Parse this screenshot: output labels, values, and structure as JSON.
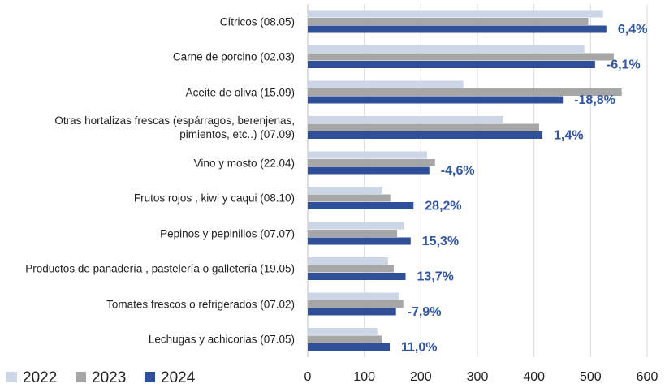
{
  "chart_data": {
    "type": "hbar",
    "categories": [
      "Cítricos (08.05)",
      "Carne de porcino (02.03)",
      "Aceite de  oliva  (15.09)",
      "Otras hortalizas frescas (espárragos, berenjenas, pimientos, etc..) (07.09)",
      "Vino y mosto  (22.04)",
      "Frutos rojos , kiwi  y caqui  (08.10)",
      "Pepinos y pepinillos (07.07)",
      "Productos de panadería , pastelería o galletería (19.05)",
      "Tomates frescos o refrigerados  (07.02)",
      "Lechugas y achicorias (07.05)"
    ],
    "series": [
      {
        "name": "2022",
        "color": "#cdd6e6",
        "values": [
          522,
          489,
          275,
          346,
          211,
          132,
          171,
          142,
          161,
          123
        ]
      },
      {
        "name": "2023",
        "color": "#a6a6a6",
        "values": [
          496,
          541,
          555,
          409,
          225,
          146,
          158,
          152,
          169,
          131
        ]
      },
      {
        "name": "2024",
        "color": "#2f4f98",
        "values": [
          528,
          508,
          451,
          415,
          215,
          187,
          182,
          173,
          156,
          145
        ]
      }
    ],
    "annotations": [
      "6,4%",
      "-6,1%",
      "-18,8%",
      "1,4%",
      "-4,6%",
      "28,2%",
      "15,3%",
      "13,7%",
      "-7,9%",
      "11,0%"
    ],
    "annotation_color": "#2f55a4",
    "xlim": [
      0,
      600
    ],
    "xticks": [
      0,
      100,
      200,
      300,
      400,
      500,
      600
    ],
    "grid": true,
    "legend": "bottom-left"
  }
}
